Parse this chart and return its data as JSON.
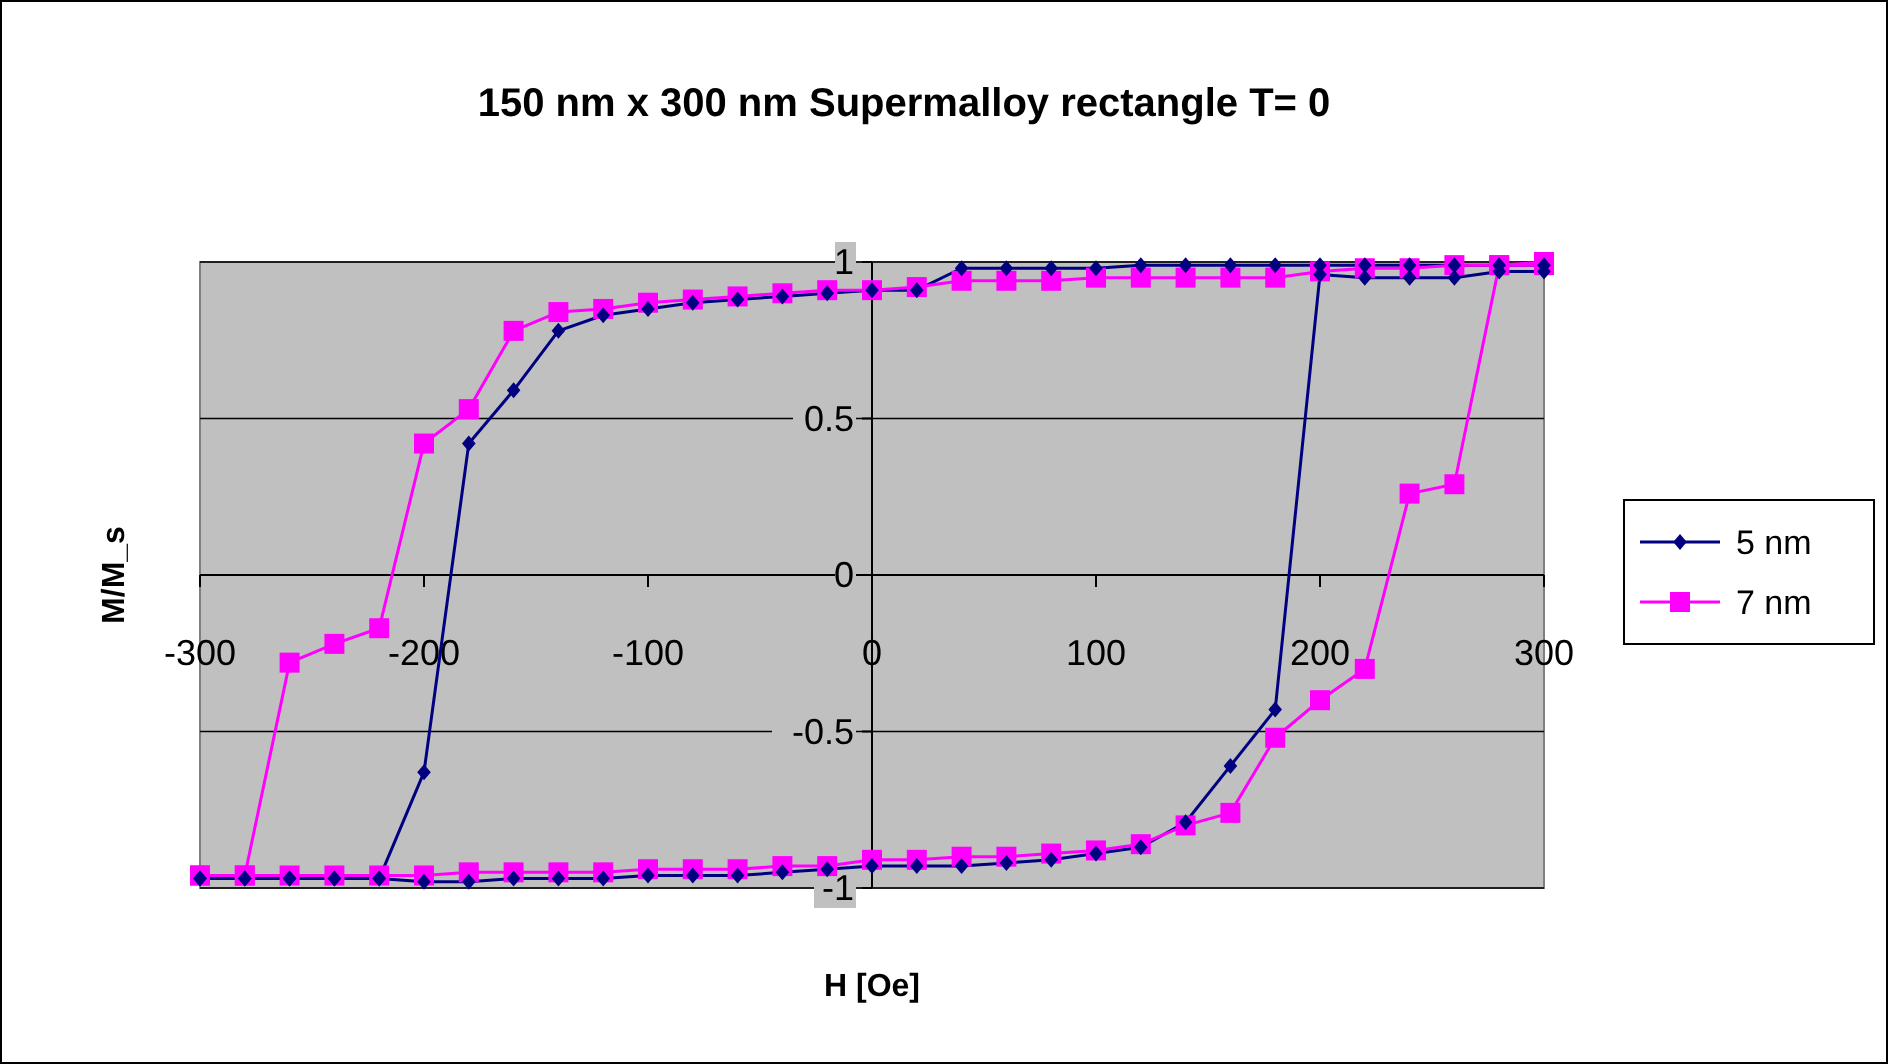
{
  "chart_data": {
    "type": "line",
    "title": "150 nm x 300 nm Supermalloy rectangle T= 0",
    "xlabel": "H [Oe]",
    "ylabel": "M/M_s",
    "xlim": [
      -300,
      300
    ],
    "xticks": [
      -300,
      -200,
      -100,
      0,
      100,
      200,
      300
    ],
    "ylim": [
      -1,
      1
    ],
    "yticks": [
      -1,
      -0.5,
      0,
      0.5,
      1
    ],
    "grid": "y",
    "legend": "right",
    "line_style": "solid",
    "x": [
      300,
      280,
      260,
      240,
      220,
      200,
      180,
      160,
      140,
      120,
      100,
      80,
      60,
      40,
      20,
      0,
      -20,
      -40,
      -60,
      -80,
      -100,
      -120,
      -140,
      -160,
      -180,
      -200,
      -220,
      -240,
      -260,
      -280,
      -300,
      -300,
      -280,
      -260,
      -240,
      -220,
      -200,
      -180,
      -160,
      -140,
      -120,
      -100,
      -80,
      -60,
      -40,
      -20,
      0,
      20,
      40,
      60,
      80,
      100,
      120,
      140,
      160,
      180,
      200,
      220,
      240,
      260,
      280,
      300
    ],
    "series": [
      {
        "name": "5 nm",
        "color": "#000080",
        "marker": "diamond",
        "values": [
          0.99,
          0.99,
          0.99,
          0.99,
          0.99,
          0.99,
          0.99,
          0.99,
          0.99,
          0.99,
          0.98,
          0.98,
          0.98,
          0.98,
          0.91,
          0.91,
          0.9,
          0.89,
          0.88,
          0.87,
          0.85,
          0.83,
          0.78,
          0.59,
          0.42,
          -0.63,
          -0.97,
          -0.97,
          -0.97,
          -0.97,
          -0.97,
          -0.97,
          -0.97,
          -0.97,
          -0.97,
          -0.97,
          -0.98,
          -0.98,
          -0.97,
          -0.97,
          -0.97,
          -0.96,
          -0.96,
          -0.96,
          -0.95,
          -0.94,
          -0.93,
          -0.93,
          -0.93,
          -0.92,
          -0.91,
          -0.89,
          -0.87,
          -0.79,
          -0.61,
          -0.43,
          0.96,
          0.95,
          0.95,
          0.95,
          0.97,
          0.97
        ]
      },
      {
        "name": "7 nm",
        "color": "#ff00ff",
        "marker": "square",
        "values": [
          0.99,
          0.99,
          0.99,
          0.98,
          0.98,
          0.97,
          0.95,
          0.95,
          0.95,
          0.95,
          0.95,
          0.94,
          0.94,
          0.94,
          0.92,
          0.91,
          0.91,
          0.9,
          0.89,
          0.88,
          0.87,
          0.85,
          0.84,
          0.78,
          0.53,
          0.42,
          -0.17,
          -0.22,
          -0.28,
          -0.96,
          -0.96,
          -0.96,
          -0.96,
          -0.96,
          -0.96,
          -0.96,
          -0.96,
          -0.95,
          -0.95,
          -0.95,
          -0.95,
          -0.94,
          -0.94,
          -0.94,
          -0.93,
          -0.93,
          -0.91,
          -0.91,
          -0.9,
          -0.9,
          -0.89,
          -0.88,
          -0.86,
          -0.8,
          -0.76,
          -0.52,
          -0.4,
          -0.3,
          0.26,
          0.29,
          0.99,
          1
        ]
      }
    ]
  }
}
